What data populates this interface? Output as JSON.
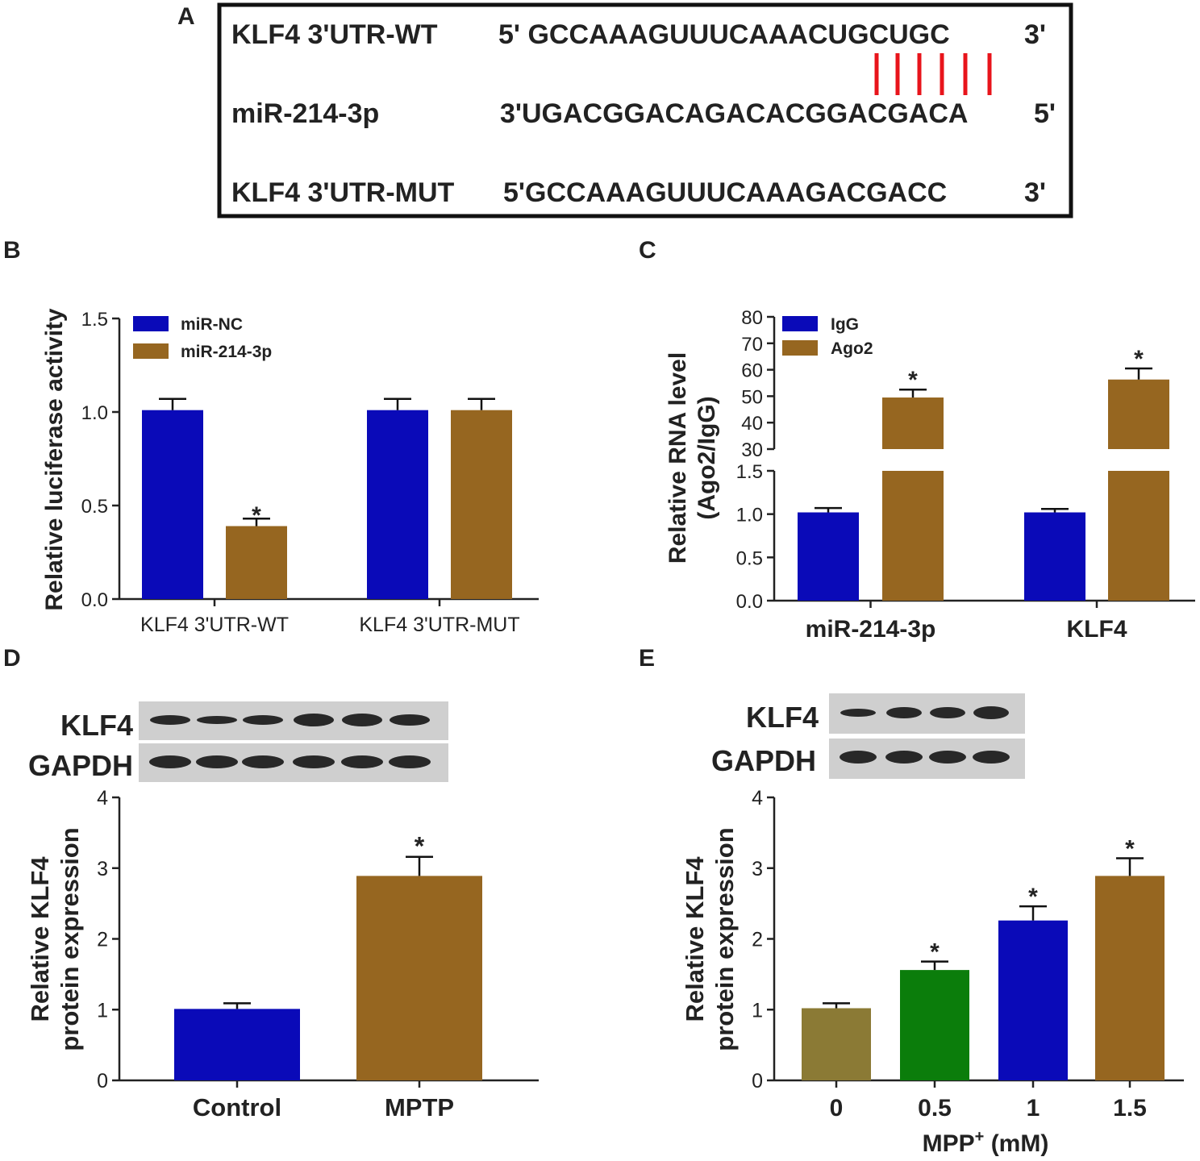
{
  "panels": {
    "A": {
      "letter": "A",
      "rows": [
        {
          "label": "KLF4 3'UTR-WT",
          "seq": "5' GCCAAAGUUUCAAACUGCUGC",
          "end": "3'"
        },
        {
          "label": "miR-214-3p",
          "seq": "3'UGACGGACAGACACGGACGACA",
          "end": "5'"
        },
        {
          "label": "KLF4 3'UTR-MUT",
          "seq": "5'GCCAAAGUUUCAAAGACGACC",
          "end": "3'"
        }
      ],
      "pair_color": "#e8141b"
    },
    "B": {
      "letter": "B"
    },
    "C": {
      "letter": "C"
    },
    "D": {
      "letter": "D",
      "blot_labels": [
        "KLF4",
        "GAPDH"
      ]
    },
    "E": {
      "letter": "E",
      "blot_labels": [
        "KLF4",
        "GAPDH"
      ]
    }
  },
  "colors": {
    "blue": "#0a0ab8",
    "brown": "#966620",
    "olive": "#8b7a35",
    "green": "#0b7d0b"
  },
  "chart_data": [
    {
      "panel": "B",
      "type": "bar",
      "categories": [
        "KLF4 3'UTR-WT",
        "KLF4 3'UTR-MUT"
      ],
      "series": [
        {
          "name": "miR-NC",
          "color": "#0a0ab8",
          "values": [
            1.01,
            1.01
          ],
          "errors": [
            0.06,
            0.06
          ],
          "sig": [
            "",
            ""
          ]
        },
        {
          "name": "miR-214-3p",
          "color": "#966620",
          "values": [
            0.39,
            1.01
          ],
          "errors": [
            0.04,
            0.06
          ],
          "sig": [
            "*",
            ""
          ]
        }
      ],
      "ylabel": "Relative luciferase activity",
      "ylim": [
        0,
        1.5
      ],
      "yticks": [
        "0.0",
        "0.5",
        "1.0",
        "1.5"
      ],
      "legend": "top-left",
      "grid": false
    },
    {
      "panel": "C",
      "type": "bar",
      "categories": [
        "miR-214-3p",
        "KLF4"
      ],
      "series": [
        {
          "name": "IgG",
          "color": "#0a0ab8",
          "values": [
            1.02,
            1.02
          ],
          "errors": [
            0.05,
            0.04
          ],
          "sig": [
            "",
            ""
          ]
        },
        {
          "name": "Ago2",
          "color": "#966620",
          "values": [
            49.5,
            56.3
          ],
          "errors": [
            3.0,
            4.2
          ],
          "sig": [
            "*",
            "*"
          ]
        }
      ],
      "ylabel": "Relative RNA level (Ago2/IgG)",
      "ylabel_lines": [
        "Relative RNA level",
        "(Ago2/IgG)"
      ],
      "axis_break": {
        "lower": [
          0,
          1.5
        ],
        "upper": [
          30,
          80
        ]
      },
      "yticks_lower": [
        "0.0",
        "0.5",
        "1.0",
        "1.5"
      ],
      "yticks_upper": [
        "30",
        "40",
        "50",
        "60",
        "70",
        "80"
      ],
      "legend": "top-left",
      "grid": false
    },
    {
      "panel": "D",
      "type": "bar",
      "categories": [
        "Control",
        "MPTP"
      ],
      "values": [
        1.01,
        2.89
      ],
      "errors": [
        0.08,
        0.27
      ],
      "sig": [
        "",
        "*"
      ],
      "colors": [
        "#0a0ab8",
        "#966620"
      ],
      "ylabel": "Relative KLF4 protein expression",
      "ylabel_lines": [
        "Relative KLF4",
        "protein expression"
      ],
      "ylim": [
        0,
        4
      ],
      "yticks": [
        "0",
        "1",
        "2",
        "3",
        "4"
      ],
      "grid": false
    },
    {
      "panel": "E",
      "type": "bar",
      "categories": [
        "0",
        "0.5",
        "1",
        "1.5"
      ],
      "values": [
        1.02,
        1.56,
        2.26,
        2.89
      ],
      "errors": [
        0.07,
        0.12,
        0.2,
        0.25
      ],
      "sig": [
        "",
        "*",
        "*",
        "*"
      ],
      "colors": [
        "#8b7a35",
        "#0b7d0b",
        "#0a0ab8",
        "#966620"
      ],
      "xlabel": "MPP+ (mM)",
      "xlabel_base": "MPP",
      "xlabel_sup": "+",
      "xlabel_unit": " (mM)",
      "ylabel": "Relative KLF4 protein expression",
      "ylabel_lines": [
        "Relative KLF4",
        "protein expression"
      ],
      "ylim": [
        0,
        4
      ],
      "yticks": [
        "0",
        "1",
        "2",
        "3",
        "4"
      ],
      "grid": false
    }
  ]
}
